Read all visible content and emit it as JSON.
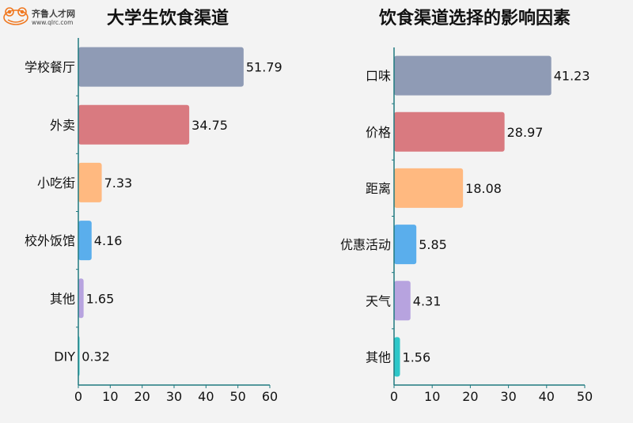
{
  "logo": {
    "text": "齐鲁人才网",
    "url_text": "www.qlrc.com"
  },
  "colors": [
    "#8f9bb5",
    "#d97a80",
    "#ffb980",
    "#5aaeec",
    "#b7a3df",
    "#2ec7c9"
  ],
  "axis_color": "#1f7a80",
  "chart_data": [
    {
      "type": "bar",
      "orientation": "horizontal",
      "title": "大学生饮食渠道",
      "categories": [
        "学校餐厅",
        "外卖",
        "小吃街",
        "校外饭馆",
        "其他",
        "DIY"
      ],
      "values": [
        51.79,
        34.75,
        7.33,
        4.16,
        1.65,
        0.32
      ],
      "value_labels": [
        "51.79",
        "34.75",
        "7.33",
        "4.16",
        "1.65",
        "0.32"
      ],
      "xlim": [
        0,
        60
      ],
      "xticks": [
        "0",
        "10",
        "20",
        "30",
        "40",
        "50",
        "60"
      ],
      "grid": false
    },
    {
      "type": "bar",
      "orientation": "horizontal",
      "title": "饮食渠道选择的影响因素",
      "categories": [
        "口味",
        "价格",
        "距离",
        "优惠活动",
        "天气",
        "其他"
      ],
      "values": [
        41.23,
        28.97,
        18.08,
        5.85,
        4.31,
        1.56
      ],
      "value_labels": [
        "41.23",
        "28.97",
        "18.08",
        "5.85",
        "4.31",
        "1.56"
      ],
      "xlim": [
        0,
        50
      ],
      "xticks": [
        "0",
        "10",
        "20",
        "30",
        "40",
        "50"
      ],
      "grid": false
    }
  ]
}
